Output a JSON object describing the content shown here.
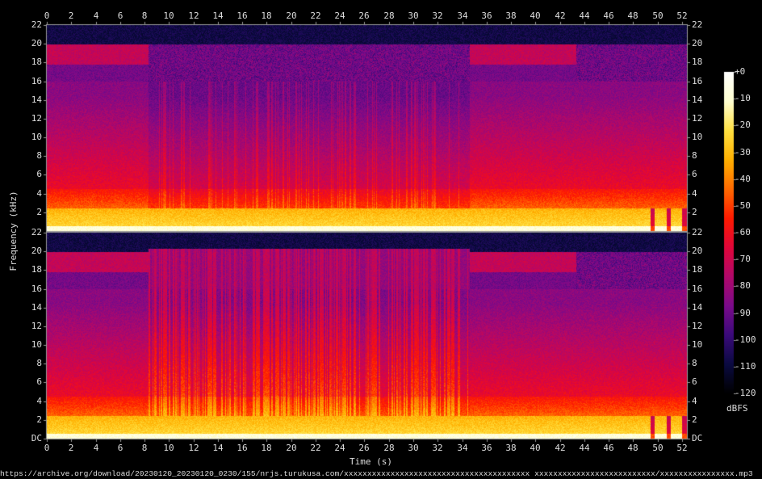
{
  "chart_data": {
    "type": "heatmap",
    "title": "",
    "xlabel": "Time (s)",
    "ylabel": "Frequency (kHz)",
    "xlim": [
      0,
      52.4
    ],
    "ylim": [
      0,
      22
    ],
    "x_ticks": [
      0,
      2,
      4,
      6,
      8,
      10,
      12,
      14,
      16,
      18,
      20,
      22,
      24,
      26,
      28,
      30,
      32,
      34,
      36,
      38,
      40,
      42,
      44,
      46,
      48,
      50,
      52
    ],
    "y_ticks_top": [
      "2",
      "4",
      "6",
      "8",
      "10",
      "12",
      "14",
      "16",
      "18",
      "20",
      "22"
    ],
    "y_ticks_bottom": [
      "DC",
      "2",
      "4",
      "6",
      "8",
      "10",
      "12",
      "14",
      "16",
      "18",
      "20",
      "22"
    ],
    "channels": 2,
    "colorbar": {
      "label": "dBFS",
      "range": [
        -120,
        0
      ],
      "ticks": [
        "+0",
        "-10",
        "-20",
        "-30",
        "-40",
        "-50",
        "-60",
        "-70",
        "-80",
        "-90",
        "-100",
        "-110",
        "-120"
      ],
      "colors": [
        "#000000",
        "#0a0a40",
        "#3a0a7a",
        "#7a0a8a",
        "#b0086a",
        "#e0063a",
        "#ff1a00",
        "#ff6a00",
        "#ffb000",
        "#ffe040",
        "#ffffd0",
        "#ffffff"
      ]
    },
    "grid": false
  },
  "footer": {
    "source": "https://archive.org/download/20230120_20230120_0230/155/nrjs.turukusa.com/xxxxxxxxxxxxxxxxxxxxxxxxxxxxxxxxxxxxxxxx xxxxxxxxxxxxxxxxxxxxxxxxxx/xxxxxxxxxxxxxxxx.mp3"
  }
}
